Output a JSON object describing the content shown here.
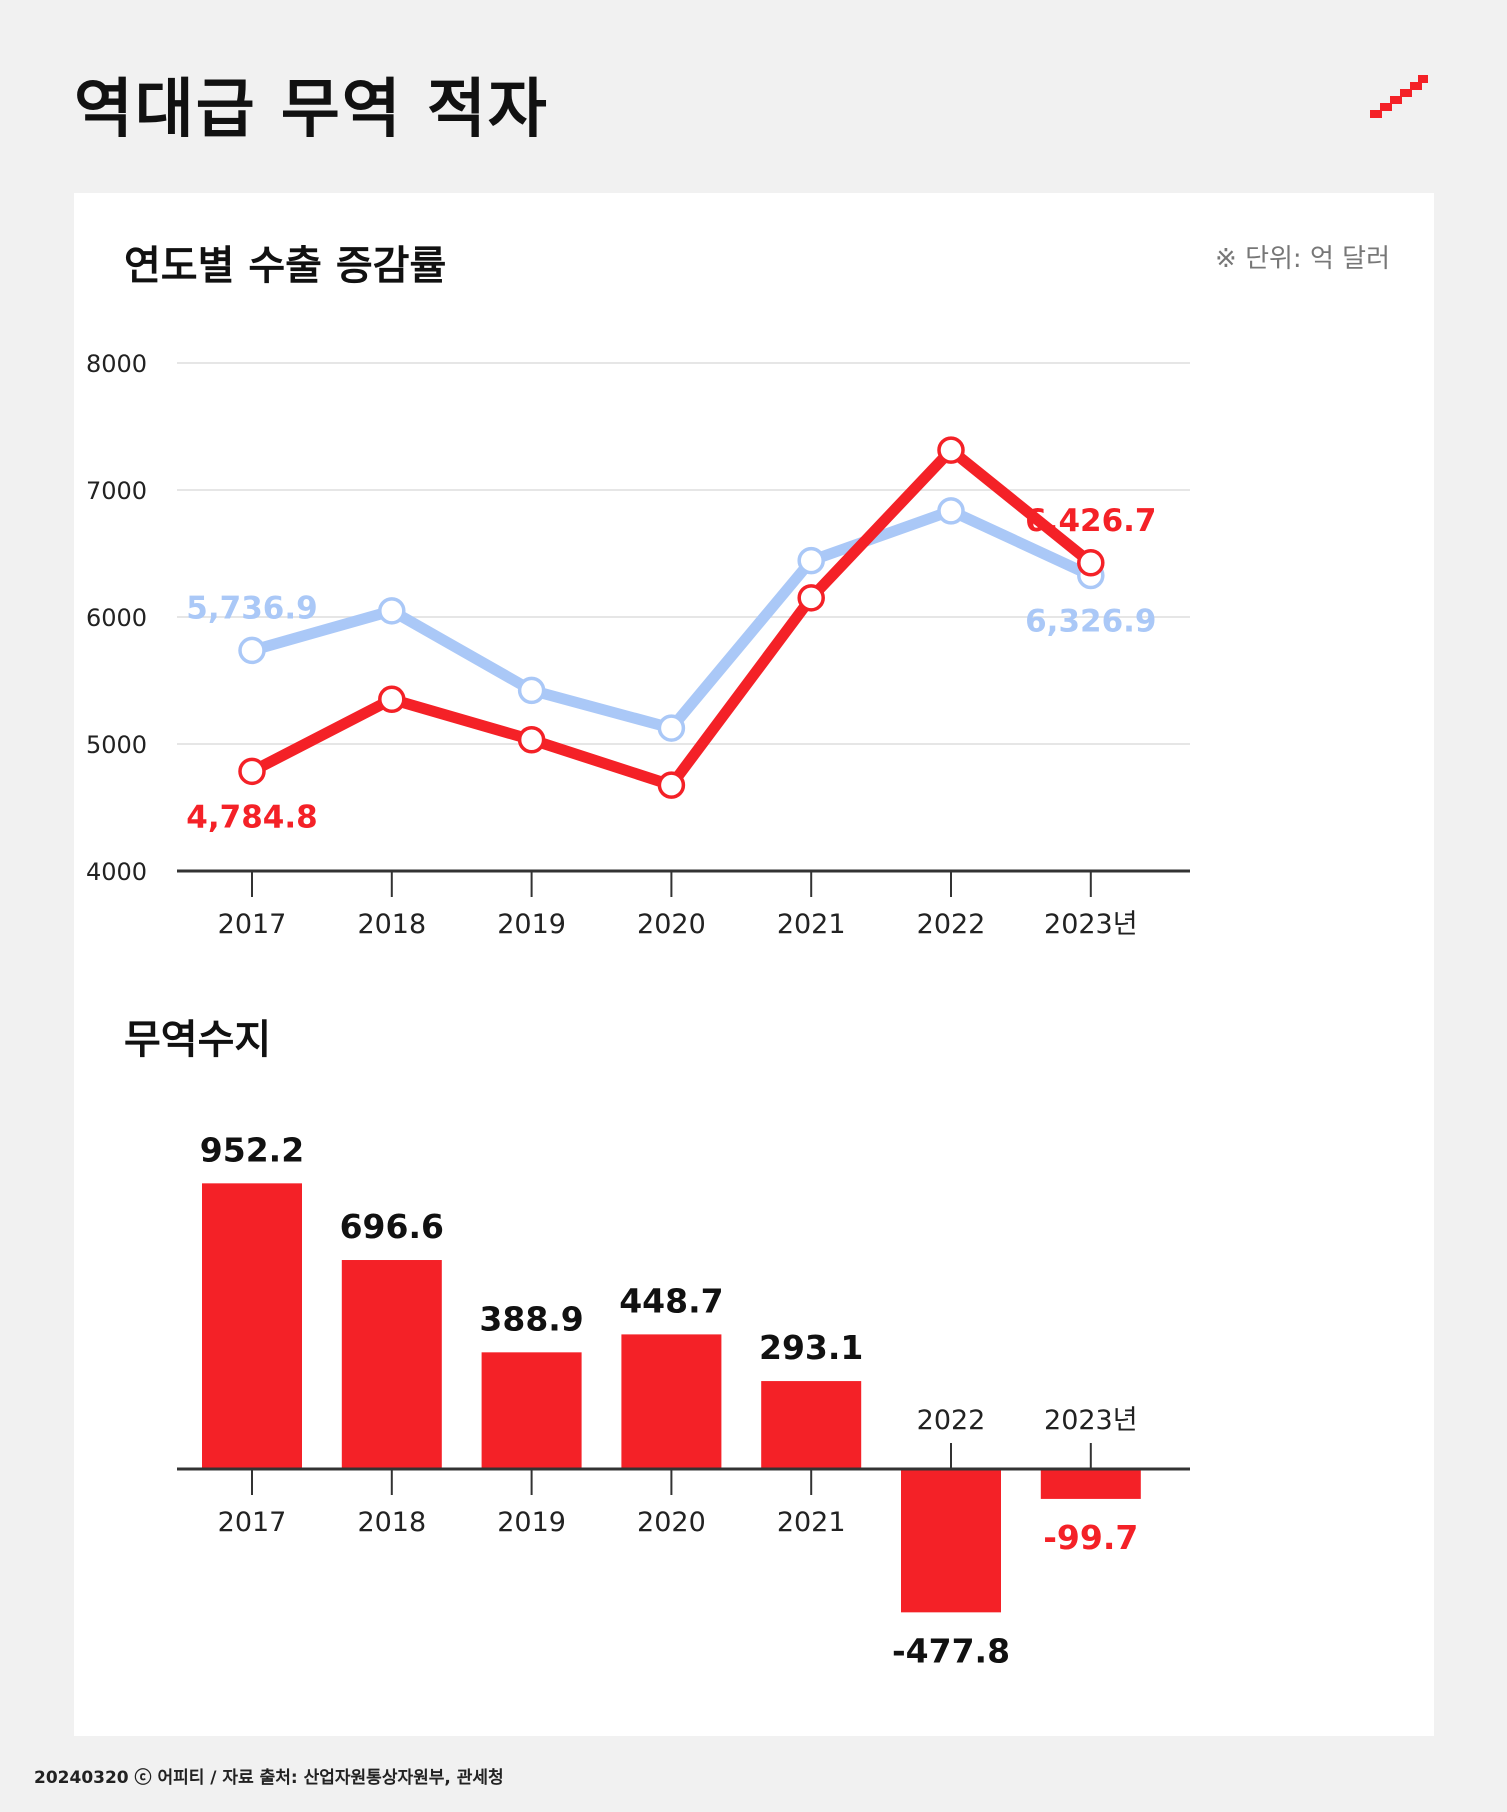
{
  "title": "역대급 무역 적자",
  "footer": "20240320 ⓒ 어피티 / 자료 출처: 산업자원통상자원부, 관세청",
  "colors": {
    "export": "#aac8f7",
    "import": "#f42127",
    "bar": "#f42127",
    "axis": "#333333",
    "grid": "#dddddd",
    "text": "#222222"
  },
  "chart_data": [
    {
      "type": "line",
      "title": "연도별 수출 증감률",
      "unit_note": "※ 단위: 억 달러",
      "categories": [
        "2017",
        "2018",
        "2019",
        "2020",
        "2021",
        "2022",
        "2023년"
      ],
      "y_ticks": [
        4000,
        5000,
        6000,
        7000,
        8000
      ],
      "ylim": [
        4000,
        8000
      ],
      "series": [
        {
          "name": "export",
          "color": "#aac8f7",
          "values": [
            5736.9,
            6048.6,
            5422.3,
            5125.4,
            6444.0,
            6835.8,
            6326.9
          ]
        },
        {
          "name": "import",
          "color": "#f42127",
          "values": [
            4784.8,
            5352.0,
            5033.4,
            4676.3,
            6150.9,
            7313.7,
            6426.7
          ]
        }
      ],
      "labels": [
        {
          "text": "5,736.9",
          "series": "export",
          "index": 0,
          "pos": "above"
        },
        {
          "text": "4,784.8",
          "series": "import",
          "index": 0,
          "pos": "below"
        },
        {
          "text": "6,426.7",
          "series": "import",
          "index": 6,
          "pos": "above"
        },
        {
          "text": "6,326.9",
          "series": "export",
          "index": 6,
          "pos": "below"
        }
      ]
    },
    {
      "type": "bar",
      "title": "무역수지",
      "categories": [
        "2017",
        "2018",
        "2019",
        "2020",
        "2021",
        "2022",
        "2023년"
      ],
      "values": [
        952.2,
        696.6,
        388.9,
        448.7,
        293.1,
        -477.8,
        -99.7
      ],
      "value_labels": [
        "952.2",
        "696.6",
        "388.9",
        "448.7",
        "293.1",
        "-477.8",
        "-99.7"
      ],
      "ylim": [
        -500,
        1000
      ]
    }
  ]
}
